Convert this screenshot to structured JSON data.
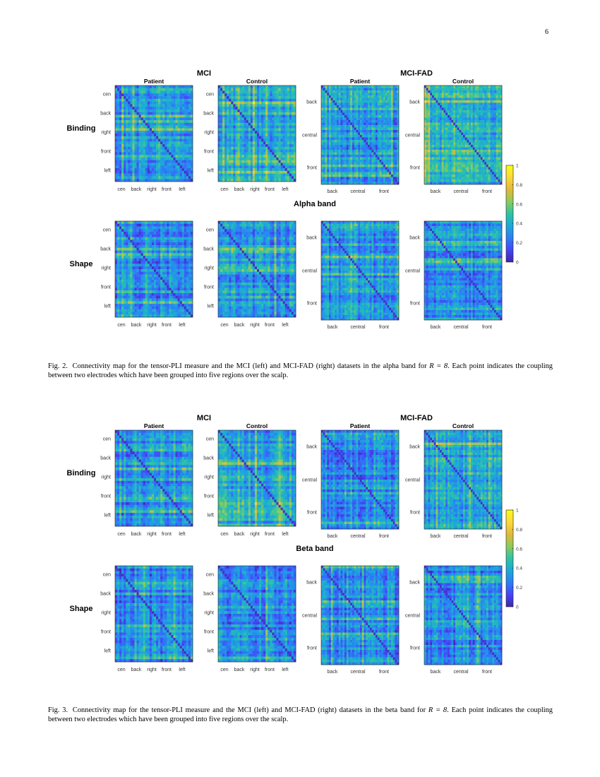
{
  "page_number": "6",
  "figures": [
    {
      "id": "fig2",
      "band_title": "Alpha band",
      "caption_label": "Fig. 2.",
      "caption_pre": "Connectivity map for the tensor-PLI measure and the MCI (left) and MCI-FAD (right) datasets in the alpha band for",
      "caption_math": "R = 8",
      "caption_post": ". Each point indicates the coupling between two electrodes which have been grouped into five regions over the scalp.",
      "seed": 11
    },
    {
      "id": "fig3",
      "band_title": "Beta band",
      "caption_label": "Fig. 3.",
      "caption_pre": "Connectivity map for the tensor-PLI measure and the MCI (left) and MCI-FAD (right) datasets in the beta band for",
      "caption_math": "R = 8",
      "caption_post": ". Each point indicates the coupling between two electrodes which have been grouped into five regions over the scalp.",
      "seed": 29
    }
  ],
  "dataset_titles": [
    "MCI",
    "MCI-FAD"
  ],
  "column_titles": [
    "Patient",
    "Control",
    "Patient",
    "Control"
  ],
  "row_titles": [
    "Binding",
    "Shape"
  ],
  "mci_regions": [
    "cen",
    "back",
    "right",
    "front",
    "left"
  ],
  "fad_regions": [
    "back",
    "central",
    "front"
  ],
  "colorbar_ticks": [
    "1",
    "0.8",
    "0.6",
    "0.4",
    "0.2",
    "0"
  ],
  "chart_data": {
    "type": "heatmap",
    "description_fields": {
      "figures": [
        "Alpha band",
        "Beta band"
      ],
      "datasets": [
        "MCI",
        "MCI-FAD"
      ],
      "columns": [
        "Patient",
        "Control"
      ],
      "rows": [
        "Binding",
        "Shape"
      ],
      "mci_axis_labels": [
        "cen",
        "back",
        "right",
        "front",
        "left"
      ],
      "fad_axis_labels": [
        "back",
        "central",
        "front"
      ]
    },
    "zlim": [
      0,
      1
    ],
    "colorbar_ticks": [
      1,
      0.8,
      0.6,
      0.4,
      0.2,
      0
    ],
    "colormap": [
      "#3e26a8",
      "#4743f8",
      "#2c7ef5",
      "#1ca9da",
      "#2dc4a5",
      "#8ecb5c",
      "#e1b93a",
      "#fcd93a",
      "#f9fb15"
    ]
  }
}
